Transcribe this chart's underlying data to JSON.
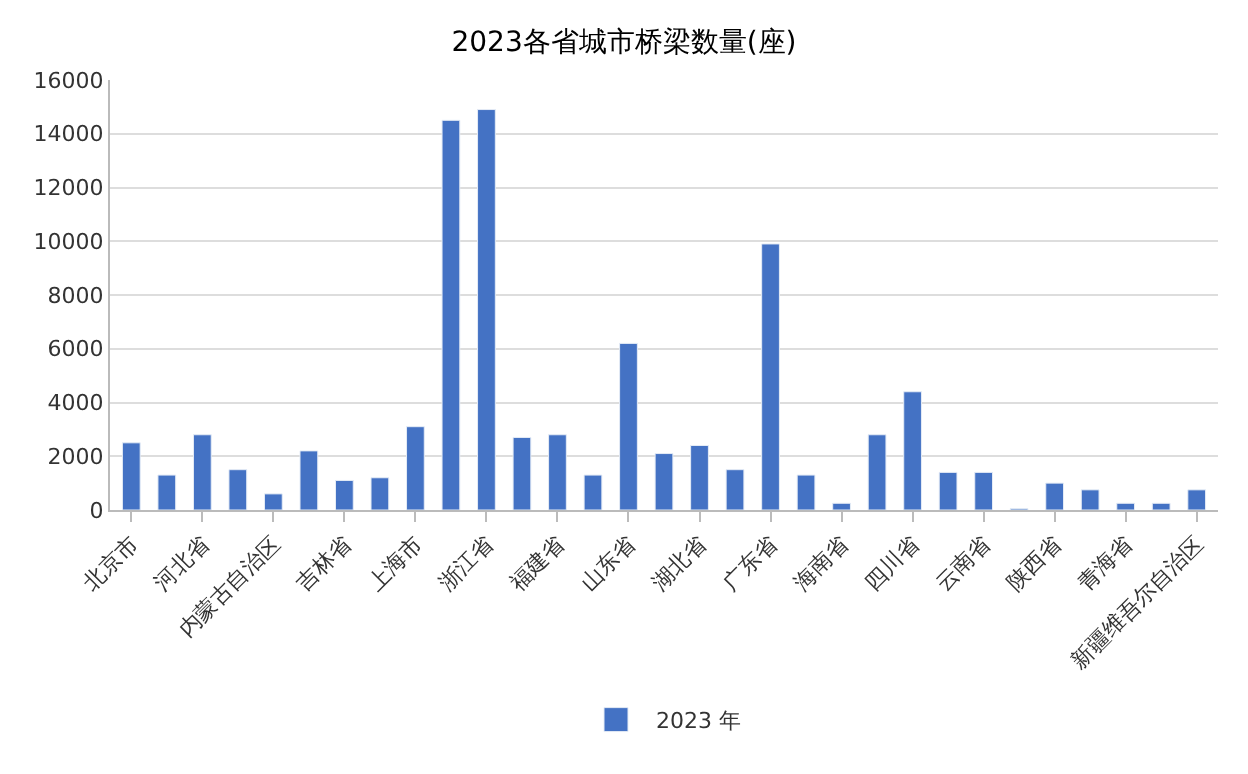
{
  "chart_data": {
    "type": "bar",
    "title": "2023各省城市桥梁数量(座)",
    "categories": [
      "北京市",
      null,
      "河北省",
      null,
      "内蒙古自治区",
      null,
      "吉林省",
      null,
      "上海市",
      null,
      "浙江省",
      null,
      "福建省",
      null,
      "山东省",
      null,
      "湖北省",
      null,
      "广东省",
      null,
      "海南省",
      null,
      "四川省",
      null,
      "云南省",
      null,
      "陕西省",
      null,
      "青海省",
      null,
      "新疆维吾尔自治区"
    ],
    "series": [
      {
        "name": "2023 年",
        "color": "#4472c4",
        "values": [
          2500,
          1300,
          2800,
          1500,
          600,
          2200,
          1100,
          1200,
          3100,
          14500,
          14900,
          2700,
          2800,
          1300,
          6200,
          2100,
          2400,
          1500,
          9900,
          1300,
          250,
          2800,
          4400,
          1400,
          1400,
          50,
          1000,
          750,
          250,
          250,
          750
        ]
      }
    ],
    "ylim": [
      0,
      16000
    ],
    "yticks": [
      0,
      2000,
      4000,
      6000,
      8000,
      10000,
      12000,
      14000,
      16000
    ],
    "grid": "y",
    "legend": "bottom"
  }
}
